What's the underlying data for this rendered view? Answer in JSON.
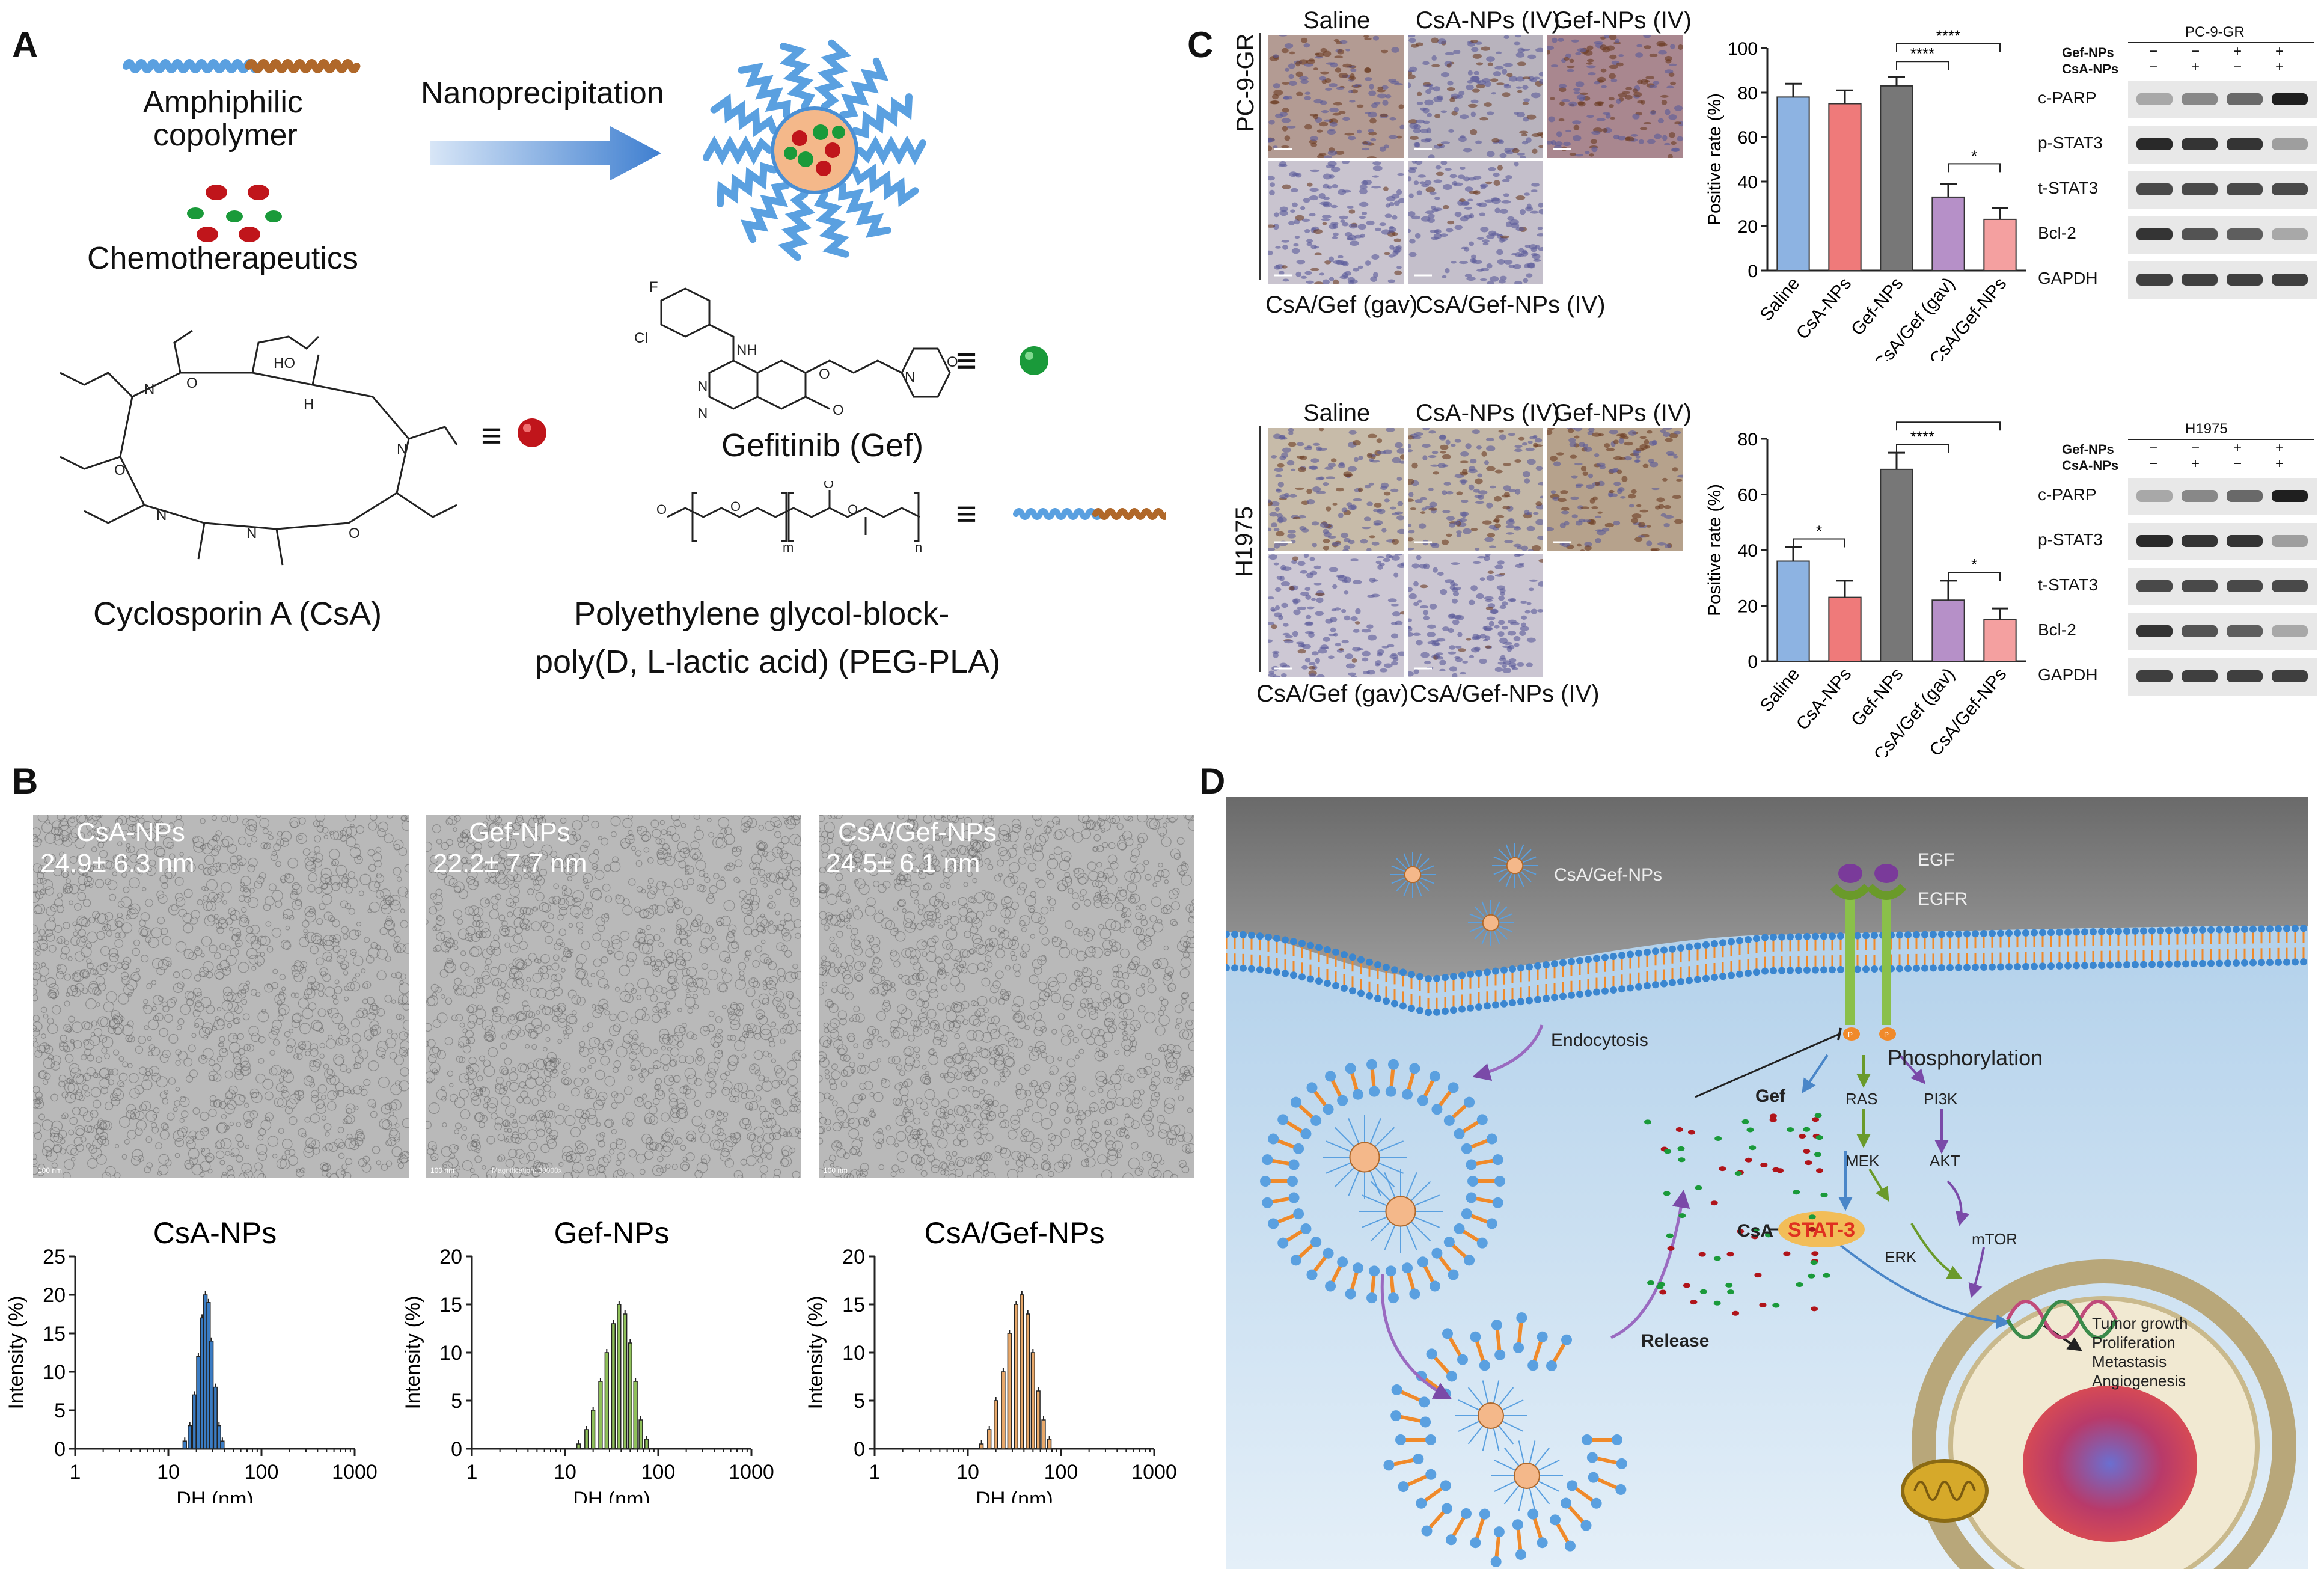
{
  "panels": {
    "a": "A",
    "b": "B",
    "c": "C",
    "d": "D"
  },
  "panel_a": {
    "copolymer_label": "Amphiphilic copolymer",
    "copolymer_line1": "Amphiphilic",
    "copolymer_line2": "copolymer",
    "chemo_label": "Chemotherapeutics",
    "process_label": "Nanoprecipitation",
    "csa_name": "Cyclosporin A (CsA)",
    "gef_name": "Gefitinib (Gef)",
    "pegpla_line1": "Polyethylene glycol-block-",
    "pegpla_line2": "poly(D, L-lactic acid) (PEG-PLA)",
    "equiv_symbol": "≡",
    "colors": {
      "csa": "#c0151b",
      "gef": "#1a9a3a",
      "peg": "#5aa0e0",
      "pla": "#b0682a",
      "core": "#f4b88a"
    }
  },
  "panel_b": {
    "tem": [
      {
        "name": "CsA-NPs",
        "size": "24.9± 6.3 nm",
        "color": "#3a7cc4"
      },
      {
        "name": "Gef-NPs",
        "size": "22.2± 7.7 nm",
        "color": "#8fbf45"
      },
      {
        "name": "CsA/Gef-NPs",
        "size": "24.5± 6.1 nm",
        "color": "#a8884c"
      }
    ],
    "scale_bar": "100 nm",
    "magnification": "Magnification: 30000x"
  },
  "chart_data": [
    {
      "type": "bar",
      "title": "CsA-NPs",
      "xlabel": "DH (nm)",
      "ylabel": "Intensity (%)",
      "xscale": "log",
      "xlim": [
        1,
        1000
      ],
      "ylim": [
        0,
        25
      ],
      "yticks": [
        0,
        5,
        10,
        15,
        20,
        25
      ],
      "xticks": [
        "1",
        "10",
        "100",
        "1000"
      ],
      "color": "#3a7cc4",
      "x": [
        15,
        17,
        19,
        21,
        23,
        25,
        27,
        29,
        32,
        35,
        38
      ],
      "values": [
        1,
        3,
        7,
        12,
        17,
        20,
        19,
        14,
        8,
        3,
        1
      ]
    },
    {
      "type": "bar",
      "title": "Gef-NPs",
      "xlabel": "DH (nm)",
      "ylabel": "Intensity (%)",
      "xscale": "log",
      "xlim": [
        1,
        1000
      ],
      "ylim": [
        0,
        20
      ],
      "yticks": [
        0,
        5,
        10,
        15,
        20
      ],
      "xticks": [
        "1",
        "10",
        "100",
        "1000"
      ],
      "color": "#8fc05a",
      "x": [
        14,
        17,
        20,
        24,
        28,
        33,
        38,
        44,
        50,
        57,
        65,
        75
      ],
      "values": [
        0.5,
        2,
        4,
        7,
        10,
        13,
        15,
        14,
        11,
        7,
        3,
        1
      ]
    },
    {
      "type": "bar",
      "title": "CsA/Gef-NPs",
      "xlabel": "DH (nm)",
      "ylabel": "Intensity (%)",
      "xscale": "log",
      "xlim": [
        1,
        1000
      ],
      "ylim": [
        0,
        20
      ],
      "yticks": [
        0,
        5,
        10,
        15,
        20
      ],
      "xticks": [
        "1",
        "10",
        "100",
        "1000"
      ],
      "color": "#e8a86a",
      "x": [
        14,
        17,
        20,
        24,
        28,
        33,
        38,
        44,
        50,
        57,
        65,
        75
      ],
      "values": [
        0.5,
        2,
        5,
        8,
        12,
        15,
        16,
        14,
        10,
        6,
        3,
        1
      ]
    },
    {
      "type": "bar",
      "title": "",
      "ylabel": "Positive rate (%)",
      "ylim": [
        0,
        100
      ],
      "yticks": [
        0,
        20,
        40,
        60,
        80,
        100
      ],
      "categories": [
        "Saline",
        "CsA-NPs",
        "Gef-NPs",
        "CsA/Gef (gav)",
        "CsA/Gef-NPs"
      ],
      "values": [
        78,
        75,
        83,
        33,
        23
      ],
      "errors": [
        6,
        6,
        4,
        6,
        5
      ],
      "colors": [
        "#8db3e2",
        "#ef7a7a",
        "#777777",
        "#b690c8",
        "#f4a0a0"
      ],
      "significance": [
        "****",
        "****",
        "*"
      ]
    },
    {
      "type": "bar",
      "title": "",
      "ylabel": "Positive rate (%)",
      "ylim": [
        0,
        80
      ],
      "yticks": [
        0,
        20,
        40,
        60,
        80
      ],
      "categories": [
        "Saline",
        "CsA-NPs",
        "Gef-NPs",
        "CsA/Gef (gav)",
        "CsA/Gef-NPs"
      ],
      "values": [
        36,
        23,
        69,
        22,
        15
      ],
      "errors": [
        5,
        6,
        6,
        7,
        4
      ],
      "colors": [
        "#8db3e2",
        "#ef7a7a",
        "#777777",
        "#b690c8",
        "#f4a0a0"
      ],
      "significance": [
        "*",
        "****",
        "****",
        "*"
      ]
    }
  ],
  "panel_c": {
    "ihc_headers": [
      "Saline",
      "CsA-NPs (IV)",
      "Gef-NPs (IV)"
    ],
    "ihc_footers": [
      "CsA/Gef (gav)",
      "CsA/Gef-NPs (IV)"
    ],
    "cell_lines": [
      "PC-9-GR",
      "H1975"
    ],
    "blot_rows": [
      "c-PARP",
      "p-STAT3",
      "t-STAT3",
      "Bcl-2",
      "GAPDH"
    ],
    "blot_treat_rows": [
      "Gef-NPs",
      "CsA-NPs"
    ],
    "blot_signs": {
      "gef": [
        "−",
        "−",
        "+",
        "+"
      ],
      "csa": [
        "−",
        "+",
        "−",
        "+"
      ]
    }
  },
  "panel_d": {
    "nps_label": "CsA/Gef-NPs",
    "egf": "EGF",
    "egfr": "EGFR",
    "endocytosis": "Endocytosis",
    "phosphorylation": "Phosphorylation",
    "gef": "Gef",
    "csa": "CsA",
    "stat3": "STAT-3",
    "ras": "RAS",
    "pi3k": "PI3K",
    "mek": "MEK",
    "akt": "AKT",
    "erk": "ERK",
    "mtor": "mTOR",
    "release": "Release",
    "p_mark": "P",
    "outcomes": [
      "Tumor growth",
      "Proliferation",
      "Metastasis",
      "Angiogenesis"
    ]
  }
}
